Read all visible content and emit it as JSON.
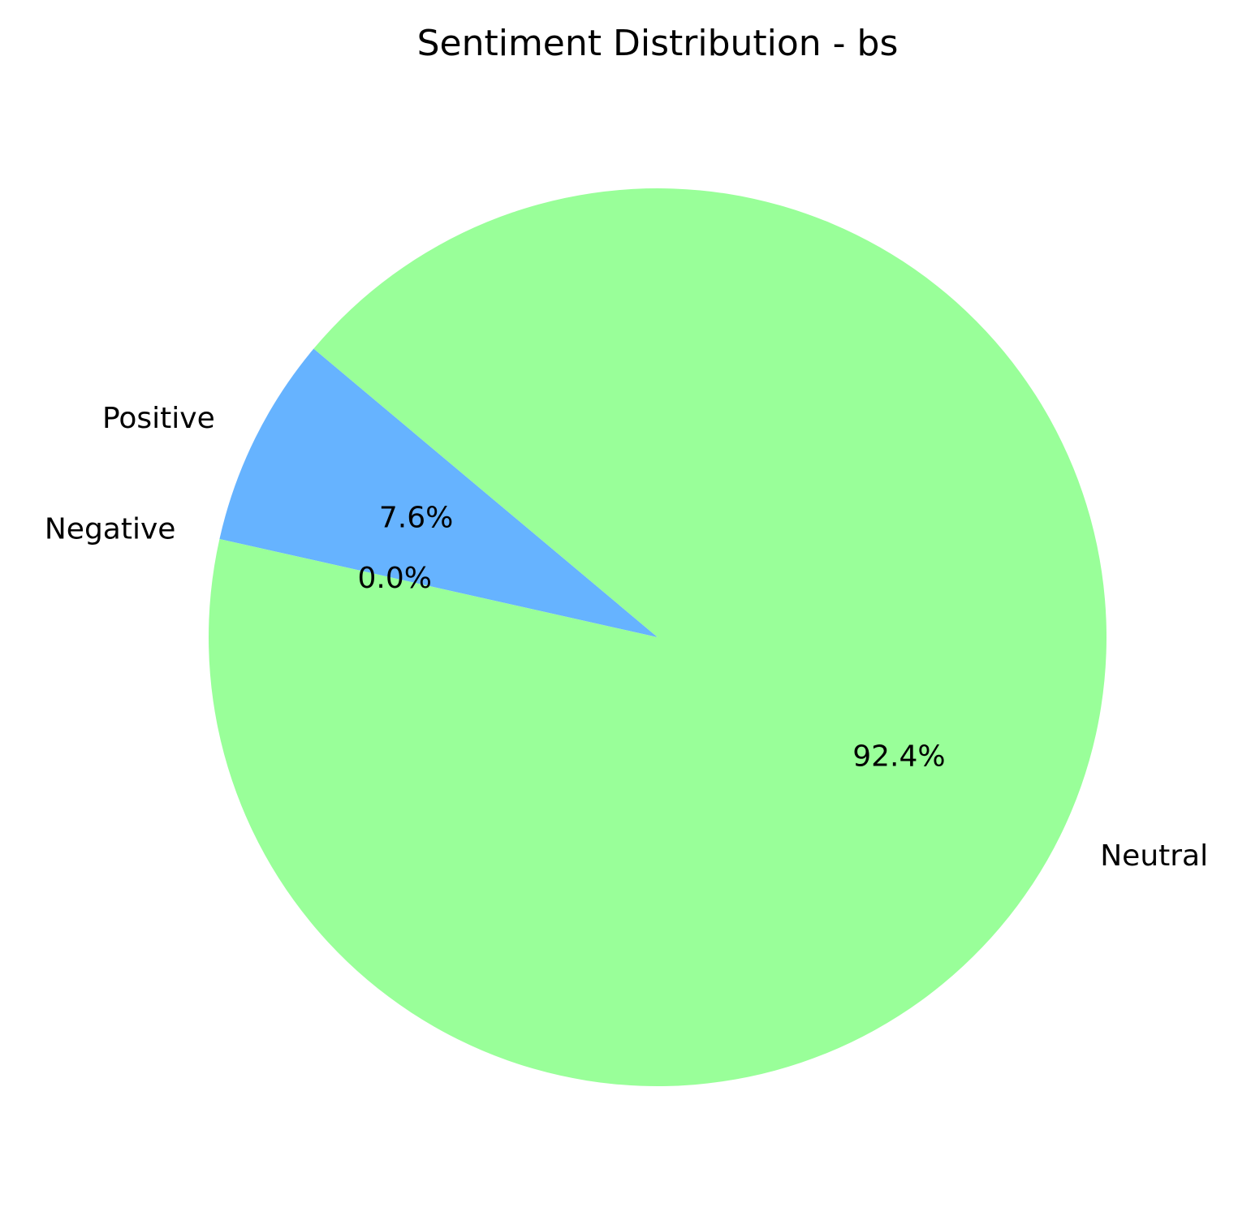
{
  "chart_data": {
    "type": "pie",
    "title": "Sentiment Distribution - bs",
    "slices": [
      {
        "label": "Positive",
        "value": 7.6,
        "pct_label": "7.6%",
        "color": "#66b3ff"
      },
      {
        "label": "Negative",
        "value": 0.0,
        "pct_label": "0.0%",
        "color": "#ff9999"
      },
      {
        "label": "Neutral",
        "value": 92.4,
        "pct_label": "92.4%",
        "color": "#99ff99"
      }
    ],
    "start_angle_deg": 140,
    "direction": "counterclockwise",
    "legend": "none"
  }
}
